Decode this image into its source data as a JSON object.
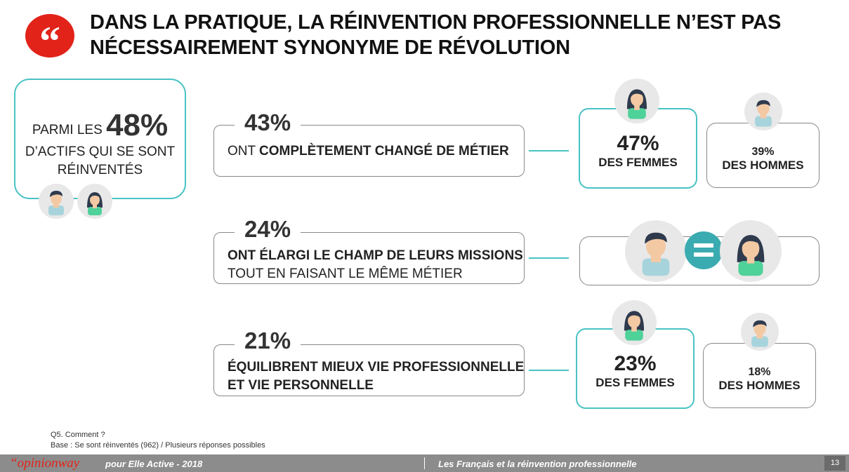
{
  "header": {
    "quote_icon": "quote-marks",
    "title_line1": "DANS LA PRATIQUE, LA RÉINVENTION PROFESSIONNELLE N’EST PAS",
    "title_line2": "NÉCESSAIREMENT SYNONYME DE RÉVOLUTION"
  },
  "summary": {
    "prefix": "PARMI LES",
    "pct": "48%",
    "line2": "D’ACTIFS QUI SE SONT",
    "line3": "RÉINVENTÉS"
  },
  "rows": [
    {
      "pct": "43%",
      "text_prefix": "ONT ",
      "text_bold": "COMPLÈTEMENT CHANGÉ DE MÉTIER",
      "women_pct": "47%",
      "women_label": "DES FEMMES",
      "men_pct": "39%",
      "men_label": "DES HOMMES"
    },
    {
      "pct": "24%",
      "text_bold": "ONT ÉLARGI LE CHAMP DE LEURS MISSIONS",
      "text_line2": "TOUT EN FAISANT LE MÊME MÉTIER"
    },
    {
      "pct": "21%",
      "text_line1": "ÉQUILIBRENT MIEUX VIE PROFESSIONNELLE",
      "text_line2": "ET VIE PERSONNELLE",
      "women_pct": "23%",
      "women_label": "DES FEMMES",
      "men_pct": "18%",
      "men_label": "DES HOMMES"
    }
  ],
  "footnotes": {
    "question": "Q5. Comment ?",
    "base": "Base : Se sont réinventés (962) / Plusieurs réponses possibles"
  },
  "footer": {
    "brand": "“opinionway",
    "sponsor": "pour Elle Active - 2018",
    "study": "Les Français et la réinvention professionnelle",
    "page": "13"
  },
  "colors": {
    "accent": "#e2231a",
    "teal": "#49c2c4",
    "avatar_skin": "#a7d4dc",
    "avatar_green": "#4fd19a"
  }
}
